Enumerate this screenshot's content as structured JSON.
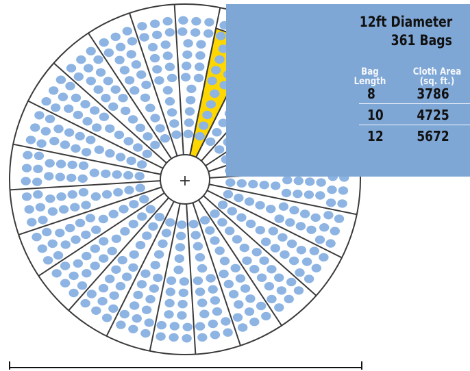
{
  "info": {
    "title": "12ft Diameter",
    "subtitle": "361 Bags",
    "headers": {
      "length": [
        "Bag",
        "Length"
      ],
      "area": [
        "Cloth Area",
        "(sq. ft.)"
      ]
    },
    "rows": [
      {
        "length": "8",
        "area": "3786"
      },
      {
        "length": "10",
        "area": "4725"
      },
      {
        "length": "12",
        "area": "5672"
      }
    ]
  },
  "diagram": {
    "segments": 24,
    "highlighted_segment": 19,
    "center_symbol": "+",
    "colors": {
      "bag": "#8db4e2",
      "highlight": "#ffd700",
      "panel": "#7fa7d6",
      "line": "#3a3a3a"
    }
  }
}
